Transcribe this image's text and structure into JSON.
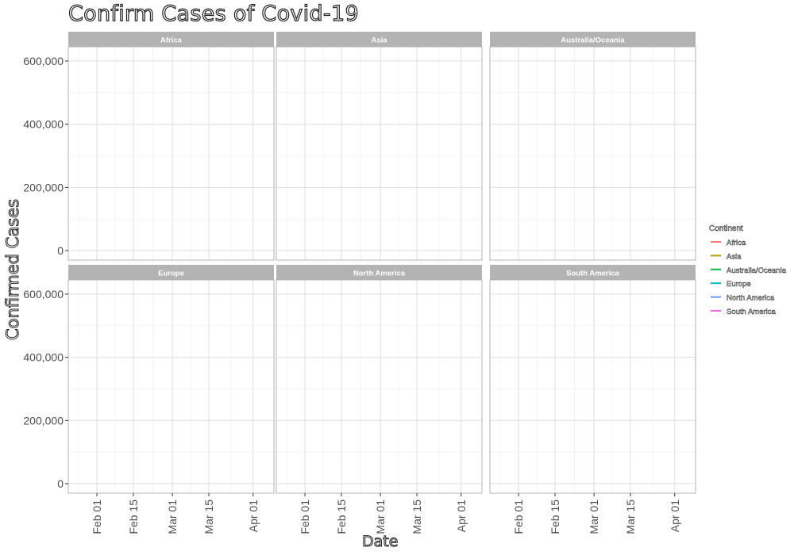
{
  "chart_data": {
    "type": "line",
    "title": "Confirm Cases of Covid-19",
    "xlabel": "Date",
    "ylabel": "Confirmed Cases",
    "facets": [
      "Africa",
      "Asia",
      "Australia/Oceania",
      "Europe",
      "North America",
      "South America"
    ],
    "x_ticks": [
      "Feb 01",
      "Feb 15",
      "Mar 01",
      "Mar 15",
      "Apr 01"
    ],
    "xlim": [
      "2020-01-21",
      "2020-04-09"
    ],
    "y_ticks": [
      0,
      200000,
      400000,
      600000
    ],
    "y_tick_labels": [
      "0",
      "200,000",
      "400,000",
      "600,000"
    ],
    "ylim": [
      -30000,
      645000
    ],
    "grid": true,
    "legend": {
      "title": "Continent",
      "placement": "right",
      "entries": [
        {
          "name": "Africa",
          "color": "#F8766D"
        },
        {
          "name": "Asia",
          "color": "#B79F00"
        },
        {
          "name": "Australia/Oceania",
          "color": "#00BA38"
        },
        {
          "name": "Europe",
          "color": "#00BFC4"
        },
        {
          "name": "North America",
          "color": "#619CFF"
        },
        {
          "name": "South America",
          "color": "#F564E3"
        }
      ]
    },
    "series": []
  }
}
